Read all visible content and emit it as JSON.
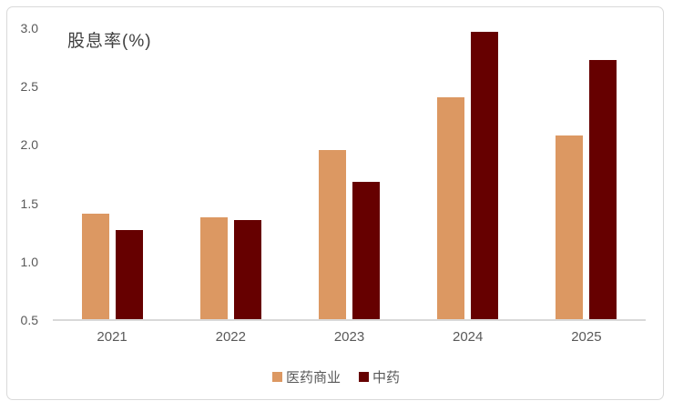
{
  "window": {
    "background": "#ffffff",
    "border_color": "#d9d9d9"
  },
  "chart_data": {
    "type": "bar",
    "title": "股息率(%)",
    "categories": [
      "2021",
      "2022",
      "2023",
      "2024",
      "2025"
    ],
    "series": [
      {
        "name": "医药商业",
        "color": "#dc9862",
        "values": [
          1.41,
          1.38,
          1.96,
          2.41,
          2.08
        ]
      },
      {
        "name": "中药",
        "color": "#660000",
        "values": [
          1.27,
          1.36,
          1.68,
          2.97,
          2.73
        ]
      }
    ],
    "xlabel": "",
    "ylabel": "",
    "ylim": [
      0.5,
      3.0
    ],
    "yticks": [
      0.5,
      1.0,
      1.5,
      2.0,
      2.5,
      3.0
    ],
    "grid": false,
    "legend_position": "bottom",
    "axis_color": "#d9d9d9",
    "tick_color": "#595959"
  }
}
